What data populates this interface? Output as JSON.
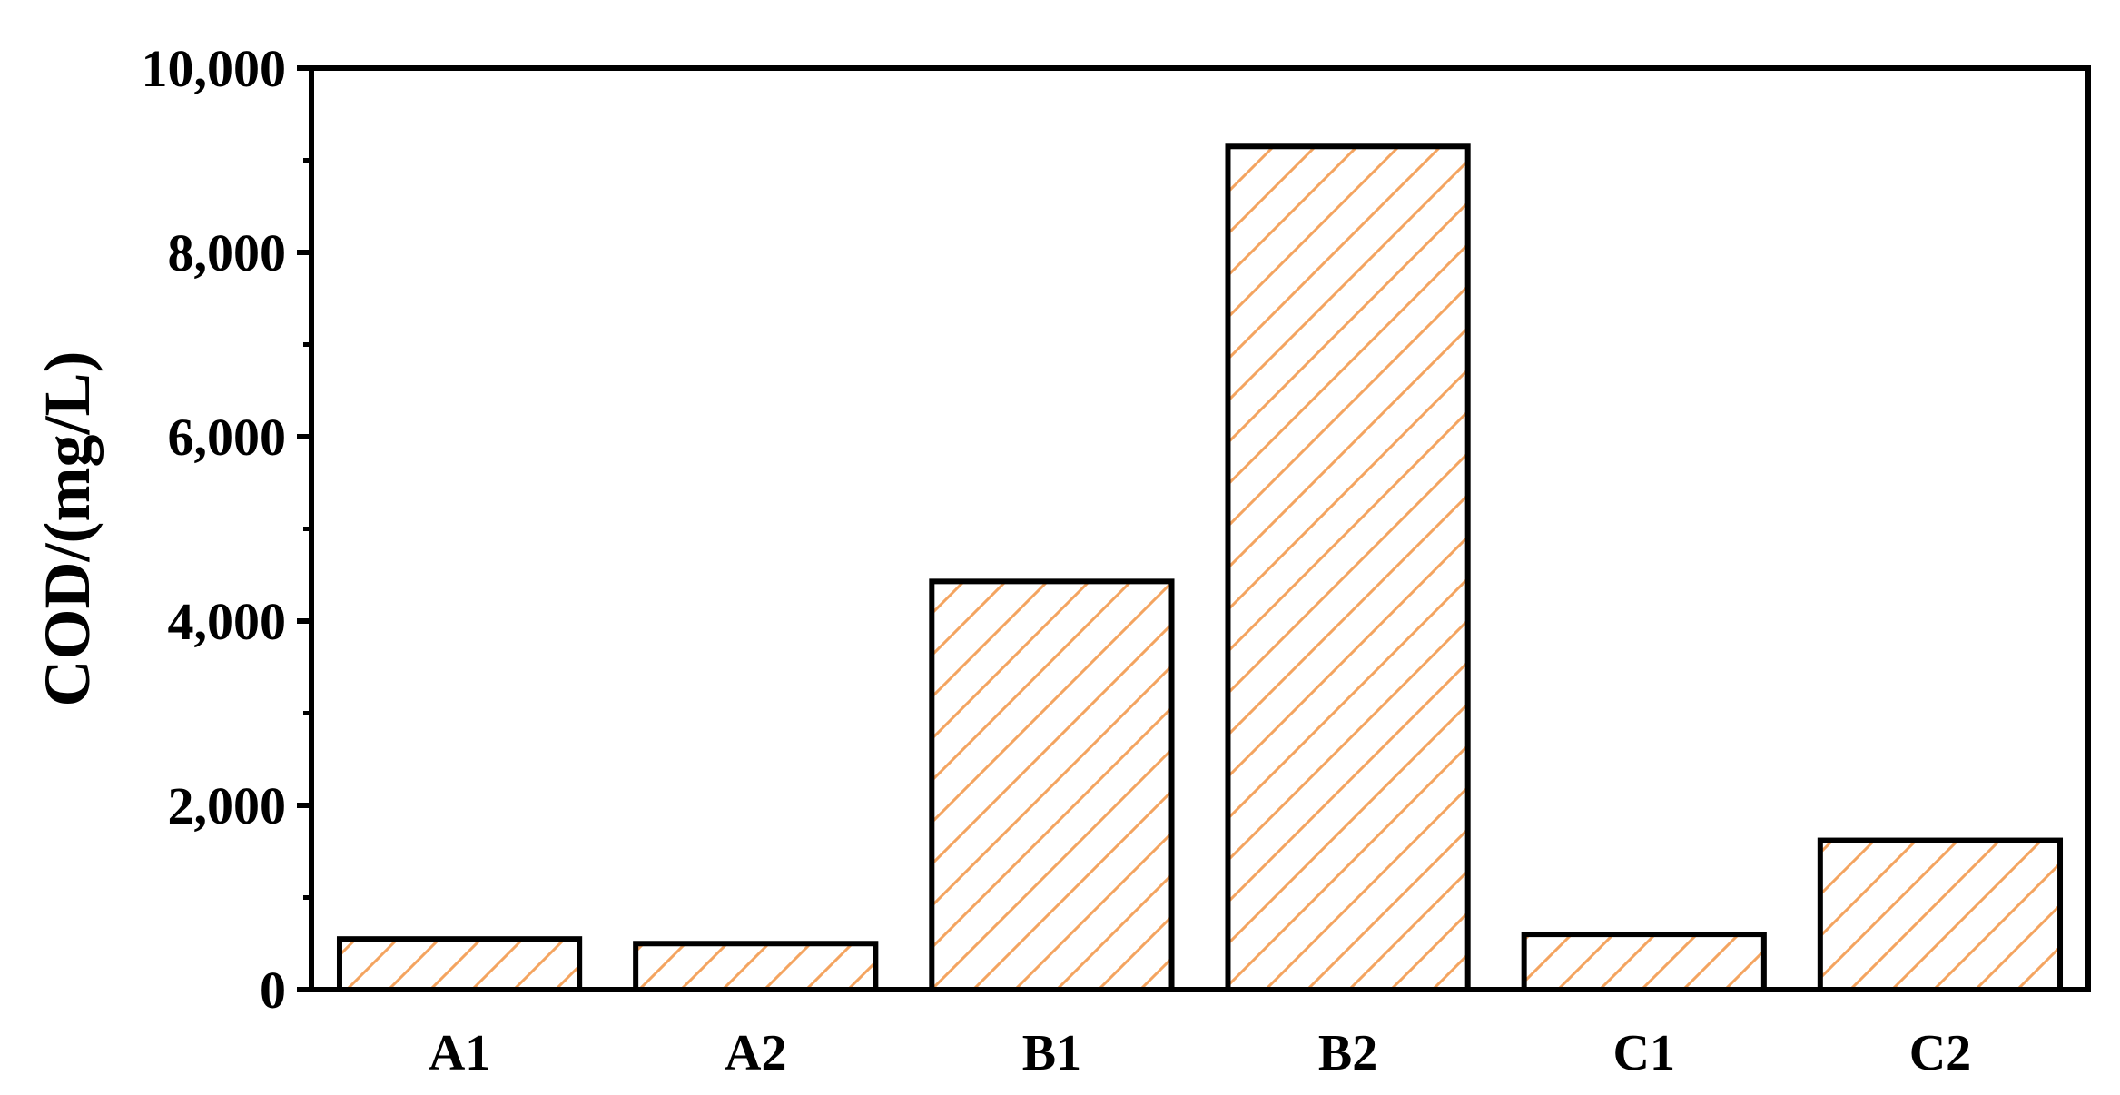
{
  "chart_data": {
    "type": "bar",
    "title": "",
    "xlabel": "",
    "ylabel": "COD/(mg/L)",
    "categories": [
      "A1",
      "A2",
      "B1",
      "B2",
      "C1",
      "C2"
    ],
    "values": [
      550,
      500,
      4430,
      9150,
      600,
      1620
    ],
    "ylim": [
      0,
      10000
    ],
    "yticks": [
      0,
      2000,
      4000,
      6000,
      8000,
      10000
    ],
    "ytick_labels": [
      "0",
      "2,000",
      "4,000",
      "6,000",
      "8,000",
      "10,000"
    ],
    "grid": false,
    "legend": "none",
    "bar_fill_pattern": "diagonal-hatch",
    "hatch_color": "#F4A460",
    "bar_edge_color": "#000000",
    "axis_color": "#000000"
  }
}
